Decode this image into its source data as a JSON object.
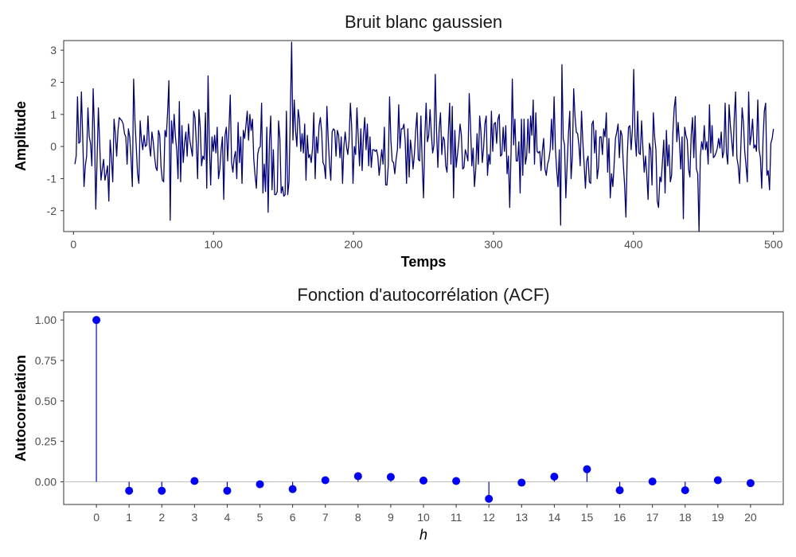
{
  "chart_data": [
    {
      "type": "line",
      "title": "Bruit blanc gaussien",
      "xlabel": "Temps",
      "ylabel": "Amplitude",
      "xlim": [
        -7,
        507
      ],
      "ylim": [
        -2.65,
        3.3
      ],
      "x_ticks": [
        0,
        100,
        200,
        300,
        400,
        500
      ],
      "y_ticks": [
        -2,
        -1,
        0,
        1,
        2,
        3
      ],
      "x_tick_labels": [
        "0",
        "100",
        "200",
        "300",
        "400",
        "500"
      ],
      "y_tick_labels": [
        "-2",
        "-1",
        "0",
        "1",
        "2",
        "3"
      ],
      "grid": false,
      "line_color": "#000080",
      "n_points": 500,
      "series": [
        {
          "values": [
            -0.55,
            -0.3,
            1.55,
            0.1,
            0.15,
            1.7,
            0.3,
            -1.25,
            -0.6,
            -0.3,
            1.2,
            0.3,
            0.1,
            -0.6,
            1.8,
            0.5,
            -1.95,
            -0.4,
            1.2,
            0.1,
            -1.05,
            -0.7,
            -0.4,
            -1.05,
            -0.85,
            -0.6,
            -1.7,
            0.2,
            -0.35,
            -1.1,
            0.85,
            0.4,
            -0.3,
            0.5,
            0.9,
            0.85,
            0.8,
            0.7,
            0.4,
            0.3,
            -0.55,
            0.55,
            0.3,
            -0.35,
            -1.25,
            2.1,
            0.8,
            0.0,
            -0.85,
            -1.15,
            0.8,
            0.2,
            -0.1,
            0.35,
            0.0,
            0.05,
            0.95,
            0.05,
            -0.3,
            0.45,
            0.15,
            -0.3,
            -0.65,
            -0.75,
            0.5,
            0.35,
            -0.65,
            -1.05,
            -1.1,
            0.5,
            0.3,
            1.05,
            2.05,
            -2.3,
            0.8,
            0.1,
            1.0,
            0.3,
            -0.1,
            -1.0,
            1.4,
            -1.1,
            0.65,
            -0.5,
            0.1,
            0.45,
            -0.3,
            0.7,
            0.2,
            -0.05,
            -0.3,
            1.1,
            0.9,
            0.1,
            -1.0,
            1.15,
            0.6,
            -0.6,
            -0.3,
            -0.4,
            1.05,
            -1.3,
            2.2,
            0.05,
            -1.2,
            0.3,
            -0.15,
            0.35,
            -0.2,
            0.6,
            -1.0,
            -0.7,
            -0.1,
            0.3,
            -1.65,
            0.35,
            0.6,
            -0.45,
            0.55,
            1.6,
            -0.5,
            -0.8,
            -0.35,
            -0.15,
            -1.0,
            0.75,
            -0.5,
            0.3,
            -1.15,
            0.5,
            0.25,
            0.65,
            1.1,
            0.2,
            1.0,
            0.5,
            0.85,
            -0.4,
            -0.9,
            -1.3,
            -0.25,
            -0.05,
            0.0,
            1.35,
            -1.45,
            -0.55,
            -1.4,
            0.6,
            -2.05,
            0.15,
            0.95,
            -1.35,
            -0.1,
            -1.5,
            -1.5,
            -1.4,
            0.8,
            0.25,
            -1.45,
            -1.25,
            -1.55,
            -1.5,
            1.1,
            -1.5,
            -1.1,
            1.0,
            3.25,
            0.2,
            1.45,
            0.5,
            0.0,
            1.15,
            0.85,
            -0.15,
            0.4,
            -0.2,
            0.7,
            -1.05,
            0.35,
            -0.35,
            -0.25,
            -0.5,
            -0.05,
            1.05,
            -1.0,
            0.3,
            -0.2,
            0.65,
            0.9,
            0.45,
            -0.5,
            -0.6,
            -1.0,
            1.25,
            0.25,
            -0.55,
            -1.05,
            0.45,
            0.55,
            0.5,
            -0.3,
            0.5,
            0.35,
            -0.35,
            0.3,
            -1.15,
            0.0,
            0.45,
            0.0,
            -0.25,
            0.2,
            1.35,
            0.6,
            -1.15,
            0.0,
            -0.25,
            1.2,
            0.3,
            -0.6,
            0.55,
            -0.75,
            0.35,
            0.9,
            -0.1,
            0.7,
            -0.6,
            0.3,
            -0.65,
            -0.1,
            -0.1,
            -0.15,
            -0.1,
            -0.3,
            -0.9,
            -0.5,
            -0.1,
            -0.55,
            0.6,
            -1.2,
            -1.2,
            -0.6,
            1.55,
            0.2,
            -0.45,
            -0.5,
            -0.85,
            -0.4,
            -0.1,
            1.3,
            -0.05,
            0.55,
            0.55,
            0.7,
            0.15,
            -1.15,
            0.55,
            -0.95,
            0.2,
            -0.15,
            -0.7,
            -0.25,
            0.5,
            1.05,
            -0.4,
            -0.45,
            0.95,
            -0.55,
            -1.6,
            0.3,
            1.35,
            0.15,
            0.35,
            1.15,
            0.4,
            -0.2,
            0.05,
            2.25,
            0.45,
            -0.65,
            0.55,
            1.05,
            -0.25,
            0.3,
            0.2,
            -0.6,
            -0.8,
            0.4,
            1.35,
            -0.55,
            1.25,
            -1.6,
            0.5,
            -0.65,
            -0.25,
            0.15,
            0.7,
            0.35,
            -0.7,
            -0.65,
            -0.1,
            -0.25,
            -0.45,
            1.65,
            0.65,
            -0.6,
            -0.05,
            -1.25,
            -0.7,
            0.4,
            -0.55,
            0.95,
            0.45,
            -0.5,
            -0.05,
            0.7,
            0.95,
            -0.9,
            -0.25,
            -0.55,
            1.1,
            -0.15,
            0.7,
            0.75,
            0.1,
            0.85,
            1.0,
            -0.3,
            -0.25,
            0.6,
            -0.15,
            0.65,
            -0.85,
            -0.3,
            -1.9,
            -0.25,
            2.1,
            0.05,
            0.85,
            -0.45,
            -0.45,
            0.15,
            -1.45,
            0.85,
            -0.9,
            0.85,
            -0.55,
            -0.3,
            0.85,
            -0.2,
            0.95,
            0.35,
            1.45,
            -0.55,
            1.05,
            -0.15,
            -0.2,
            -0.15,
            -0.75,
            -0.15,
            0.25,
            -0.7,
            -0.9,
            -0.55,
            -0.4,
            -0.1,
            0.85,
            -0.1,
            1.55,
            -0.05,
            -0.75,
            -1.25,
            -0.1,
            -2.45,
            2.55,
            0.25,
            0.05,
            -1.6,
            -0.55,
            0.4,
            1.1,
            -1.0,
            -0.3,
            1.8,
            0.95,
            0.45,
            0.4,
            0.05,
            -0.6,
            1.1,
            0.15,
            -0.55,
            -1.3,
            -0.45,
            -0.3,
            -1.1,
            -1.15,
            0.7,
            0.8,
            -0.2,
            0.5,
            -1.0,
            -0.65,
            0.3,
            0.3,
            -0.25,
            0.55,
            0.3,
            1.05,
            -0.8,
            0.25,
            -1.6,
            -0.85,
            -1.25,
            -0.55,
            0.25,
            0.45,
            0.7,
            -0.35,
            0.5,
            0.35,
            -0.55,
            -1.2,
            -2.2,
            -0.3,
            0.6,
            0.65,
            -0.1,
            0.55,
            2.4,
            0.3,
            -0.3,
            1.1,
            -0.2,
            -0.25,
            0.8,
            -0.05,
            -0.8,
            -0.3,
            -0.9,
            -1.65,
            0.1,
            -0.1,
            -1.2,
            1.05,
            0.3,
            -0.1,
            -1.7,
            -1.9,
            -0.95,
            -1.1,
            -0.45,
            0.2,
            -1.45,
            0.5,
            -0.6,
            0.05,
            -1.1,
            -0.9,
            0.45,
            1.2,
            1.55,
            0.15,
            0.75,
            0.15,
            -0.7,
            0.3,
            -2.25,
            0.6,
            0.35,
            0.2,
            -0.7,
            -0.95,
            0.35,
            0.9,
            -0.35,
            0.95,
            -0.7,
            -0.85,
            -2.65,
            -0.3,
            0.15,
            -0.1,
            0.65,
            -0.1,
            0.15,
            -0.55,
            1.3,
            -0.2,
            0.65,
            -0.35,
            -0.3,
            -0.2,
            -0.05,
            0.25,
            -0.05,
            0.45,
            -0.35,
            -0.15,
            1.35,
            -0.2,
            -0.55,
            1.3,
            0.65,
            0.2,
            -0.3,
            0.9,
            1.7,
            -0.35,
            -0.6,
            -1.15,
            -0.05,
            1.2,
            0.75,
            -0.15,
            -0.6,
            -1.1,
            1.7,
            0.05,
            0.35,
            0.85,
            -0.05,
            0.05,
            -0.15,
            1.45,
            -0.1,
            -0.35,
            -1.3,
            0.2,
            1.1,
            1.35,
            -0.9,
            -0.75,
            -1.35,
            0.1,
            0.25,
            0.55
          ]
        }
      ]
    },
    {
      "type": "scatter",
      "subtype": "lollipop",
      "title": "Fonction d'autocorrélation (ACF)",
      "xlabel": "h",
      "ylabel": "Autocorrelation",
      "xlim": [
        -1,
        21
      ],
      "ylim": [
        -0.14,
        1.05
      ],
      "y_ticks": [
        0,
        0.25,
        0.5,
        0.75,
        1.0
      ],
      "y_tick_labels": [
        "0.00",
        "0.25",
        "0.50",
        "0.75",
        "1.00"
      ],
      "x_tick_labels": [
        "0",
        "1",
        "2",
        "3",
        "4",
        "5",
        "6",
        "7",
        "8",
        "9",
        "10",
        "11",
        "12",
        "13",
        "14",
        "15",
        "16",
        "17",
        "18",
        "19",
        "20"
      ],
      "grid": false,
      "reference_line": 0,
      "reference_line_color": "#c0c0c0",
      "point_color": "#0000ff",
      "x": [
        0,
        1,
        2,
        3,
        4,
        5,
        6,
        7,
        8,
        9,
        10,
        11,
        12,
        13,
        14,
        15,
        16,
        17,
        18,
        19,
        20
      ],
      "values": [
        1.0,
        -0.055,
        -0.055,
        0.005,
        -0.055,
        -0.015,
        -0.045,
        0.01,
        0.035,
        0.03,
        0.008,
        0.005,
        -0.105,
        -0.005,
        0.032,
        0.078,
        -0.052,
        0.002,
        -0.052,
        0.01,
        -0.008
      ]
    }
  ]
}
